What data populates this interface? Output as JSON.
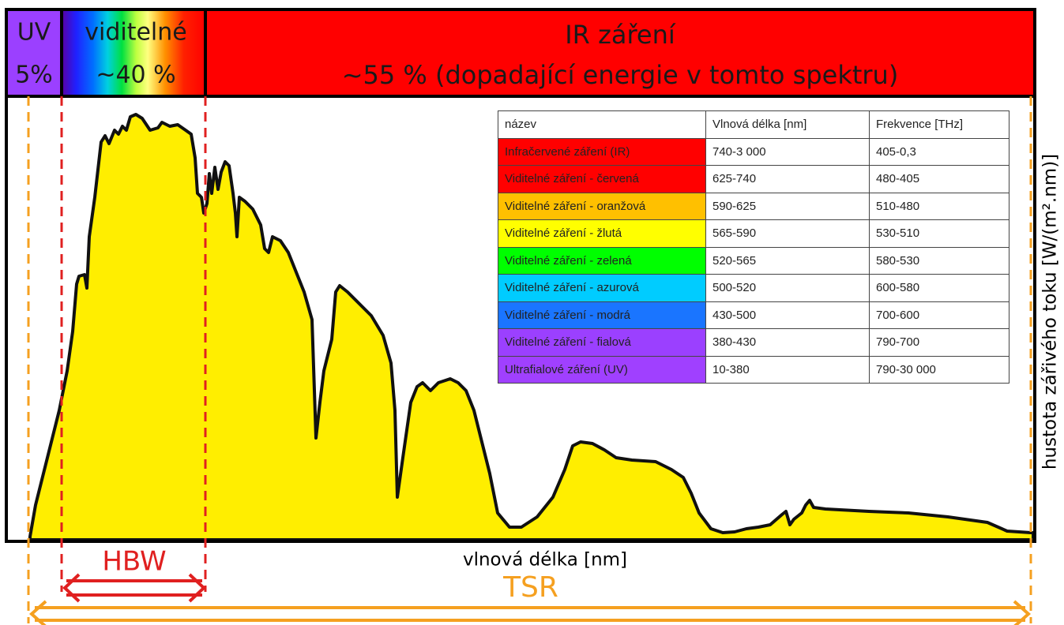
{
  "bands": {
    "uv": {
      "label": "UV",
      "share": "5%"
    },
    "visible": {
      "label": "viditelné",
      "share": "~40 %"
    },
    "ir": {
      "label": "IR záření",
      "share": "~55 % (dopadající energie v tomto spektru)"
    }
  },
  "table": {
    "header": [
      "název",
      "Vlnová délka [nm]",
      "Frekvence [THz]"
    ],
    "rows": [
      {
        "name": "Infračervené záření (IR)",
        "wavelength": "740-3 000",
        "frequency": "405-0,3",
        "color": "#ff0000"
      },
      {
        "name": "Viditelné záření - červená",
        "wavelength": "625-740",
        "frequency": "480-405",
        "color": "#ff0000"
      },
      {
        "name": "Viditelné záření - oranžová",
        "wavelength": "590-625",
        "frequency": "510-480",
        "color": "#ffc000"
      },
      {
        "name": "Viditelné záření - žlutá",
        "wavelength": "565-590",
        "frequency": "530-510",
        "color": "#ffff00"
      },
      {
        "name": "Viditelné záření - zelená",
        "wavelength": "520-565",
        "frequency": "580-530",
        "color": "#00ff00"
      },
      {
        "name": "Viditelné záření - azurová",
        "wavelength": "500-520",
        "frequency": "600-580",
        "color": "#00ccff"
      },
      {
        "name": "Viditelné záření - modrá",
        "wavelength": "430-500",
        "frequency": "700-600",
        "color": "#1a75ff"
      },
      {
        "name": "Viditelné záření - fialová",
        "wavelength": "380-430",
        "frequency": "790-700",
        "color": "#9b40ff"
      },
      {
        "name": "Ultrafialové záření (UV)",
        "wavelength": "10-380",
        "frequency": "790-30 000",
        "color": "#a040ff"
      }
    ]
  },
  "x_axis_label": "vlnová délka [nm]",
  "y_axis_label": "hustota zářivého toku [W/(m².nm)]",
  "hbw_label": "HBW",
  "tsr_label": "TSR"
}
